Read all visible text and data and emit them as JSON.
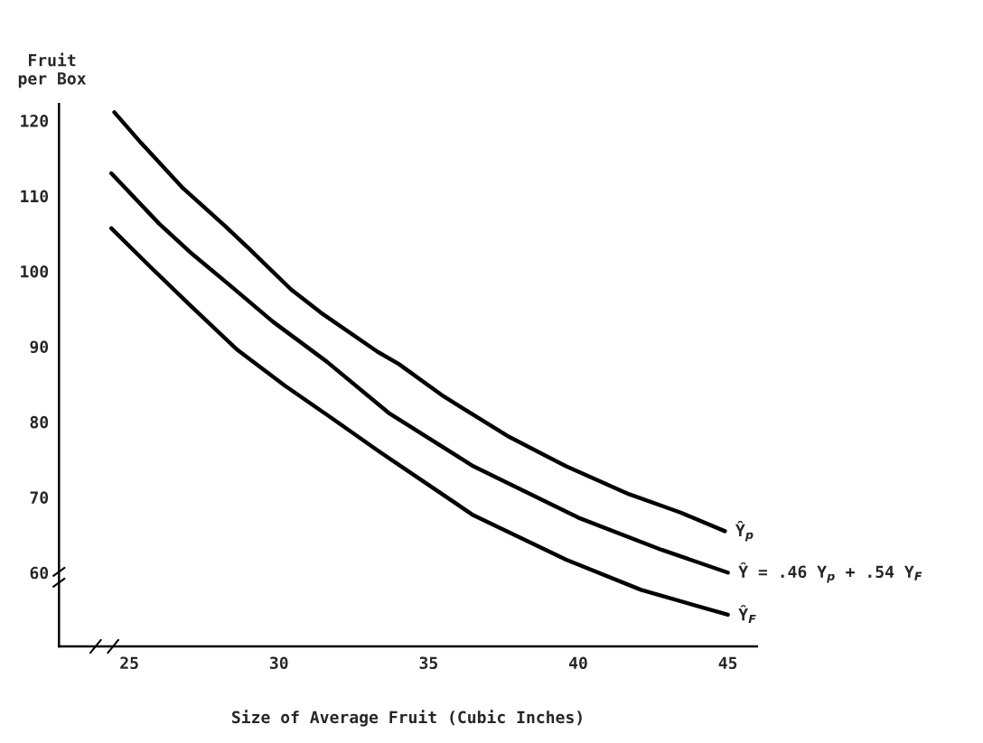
{
  "chart_data": {
    "type": "line",
    "xlabel": "Size of Average Fruit (Cubic Inches)",
    "ylabel": "Fruit\nper Box",
    "xlim": [
      22.65,
      45.97
    ],
    "ylim": [
      50.2,
      122.2
    ],
    "xticks": [
      25,
      30,
      35,
      40,
      45
    ],
    "yticks": [
      60,
      70,
      80,
      90,
      100,
      110,
      120
    ],
    "grid": false,
    "legend": false,
    "marker": "none",
    "line_style": "solid",
    "series": [
      {
        "name": "Ŷ$_{p}$",
        "color": "#000000",
        "x": [
          24.5,
          25.4,
          26.8,
          28.2,
          29.0,
          30.4,
          31.4,
          33.3,
          34.0,
          35.5,
          37.7,
          39.6,
          41.7,
          43.4,
          44.9
        ],
        "values": [
          121.1,
          117.0,
          111.0,
          106.0,
          103.0,
          97.6,
          94.5,
          89.3,
          87.7,
          83.4,
          78.0,
          74.1,
          70.4,
          68.0,
          65.5
        ]
      },
      {
        "name": "Ŷ = .46 Y$_{p}$ + .54 Y$_{F}$",
        "color": "#000000",
        "x": [
          24.4,
          26.0,
          27.1,
          28.4,
          29.8,
          31.6,
          33.7,
          36.5,
          40.0,
          42.8,
          45.0
        ],
        "values": [
          113.0,
          106.3,
          102.3,
          98.0,
          93.3,
          88.0,
          81.1,
          74.1,
          67.3,
          63.0,
          60.0
        ]
      },
      {
        "name": "Ŷ$_{F}$",
        "color": "#000000",
        "x": [
          24.4,
          25.7,
          27.0,
          28.6,
          30.2,
          31.8,
          33.3,
          36.5,
          39.6,
          42.1,
          45.0
        ],
        "values": [
          105.7,
          100.6,
          95.6,
          89.6,
          84.8,
          80.4,
          76.2,
          67.6,
          61.7,
          57.7,
          54.4
        ]
      }
    ]
  }
}
